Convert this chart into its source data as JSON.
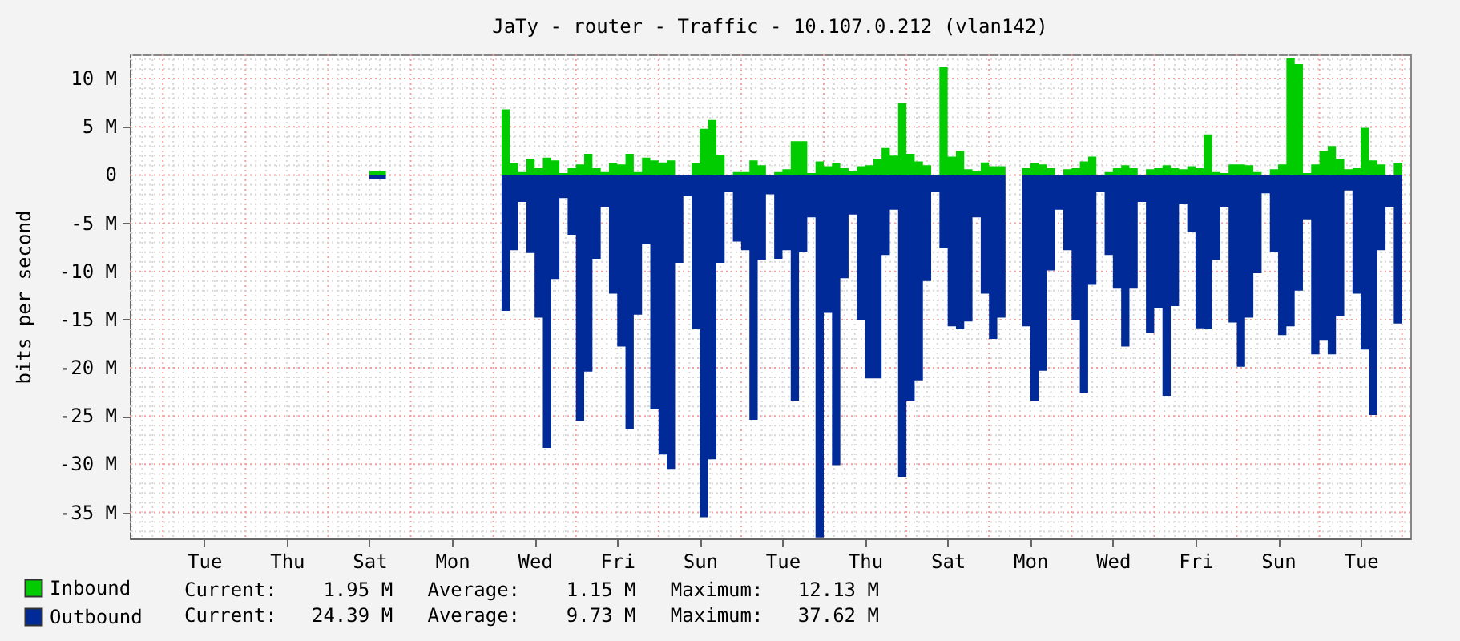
{
  "chart_data": {
    "type": "area",
    "title": "JaTy - router - Traffic - 10.107.0.212 (vlan142)",
    "ylabel": "bits per second",
    "categories": [
      null,
      null,
      null,
      null,
      null,
      null,
      null,
      null,
      null,
      "Tue",
      null,
      null,
      null,
      null,
      null,
      null,
      null,
      null,
      null,
      "Thu",
      null,
      null,
      null,
      null,
      null,
      null,
      null,
      null,
      null,
      "Sat",
      null,
      null,
      null,
      null,
      null,
      null,
      null,
      null,
      null,
      "Mon",
      null,
      null,
      null,
      null,
      null,
      null,
      null,
      null,
      null,
      "Wed",
      null,
      null,
      null,
      null,
      null,
      null,
      null,
      null,
      null,
      "Fri",
      null,
      null,
      null,
      null,
      null,
      null,
      null,
      null,
      null,
      "Sun",
      null,
      null,
      null,
      null,
      null,
      null,
      null,
      null,
      null,
      "Tue",
      null,
      null,
      null,
      null,
      null,
      null,
      null,
      null,
      null,
      "Thu",
      null,
      null,
      null,
      null,
      null,
      null,
      null,
      null,
      null,
      "Sat",
      null,
      null,
      null,
      null,
      null,
      null,
      null,
      null,
      null,
      "Mon",
      null,
      null,
      null,
      null,
      null,
      null,
      null,
      null,
      null,
      "Wed",
      null,
      null,
      null,
      null,
      null,
      null,
      null,
      null,
      null,
      "Fri",
      null,
      null,
      null,
      null,
      null,
      null,
      null,
      null,
      null,
      "Sun",
      null,
      null,
      null,
      null,
      null,
      null,
      null,
      null,
      null,
      "Tue",
      null,
      null,
      null,
      null,
      null
    ],
    "series": [
      {
        "name": "Inbound",
        "color": "#00cc00",
        "values": [
          0,
          0,
          0,
          0,
          0,
          0,
          0,
          0,
          0,
          0,
          0,
          0,
          0,
          0,
          0,
          0,
          0,
          0,
          0,
          0,
          0,
          0,
          0,
          0,
          0,
          0,
          0,
          0,
          0,
          0.4,
          0.4,
          0,
          0,
          0,
          0,
          0,
          0,
          0,
          0,
          0,
          0,
          0,
          0,
          0,
          null,
          6.8,
          1.2,
          0.3,
          1.7,
          0.7,
          1.8,
          1.5,
          0.2,
          0.7,
          1.1,
          2.2,
          0.7,
          0.3,
          1.2,
          1.1,
          2.2,
          0.3,
          1.8,
          1.5,
          1.3,
          1.5,
          0,
          0,
          1.2,
          4.8,
          5.7,
          2.1,
          0,
          0.3,
          0.3,
          1.5,
          1.0,
          0,
          0.3,
          0.6,
          3.5,
          3.5,
          0.2,
          1.4,
          0.9,
          1.2,
          0.7,
          0.4,
          0.9,
          1.0,
          1.7,
          2.8,
          2.0,
          7.5,
          2.2,
          1.4,
          1.0,
          0,
          11.2,
          1.9,
          2.5,
          0.6,
          0.4,
          1.3,
          0.9,
          0.9,
          1.5,
          null,
          0.7,
          1.2,
          1.1,
          0.7,
          0,
          0.6,
          0.7,
          1.4,
          1.9,
          0,
          0.3,
          0.7,
          1.0,
          0.7,
          0,
          0.6,
          0.7,
          1.0,
          0.7,
          0.6,
          0.9,
          0.7,
          4.2,
          0.3,
          0.2,
          1.1,
          1.1,
          1.0,
          0.3,
          0,
          0.6,
          1.1,
          12.1,
          11.5,
          0.2,
          1.1,
          2.5,
          3.0,
          1.7,
          0.6,
          0.7,
          4.9,
          1.5,
          1.1,
          0,
          1.2,
          1.9
        ]
      },
      {
        "name": "Outbound",
        "color": "#002a97",
        "values": [
          0,
          0,
          0,
          0,
          0,
          0,
          0,
          0,
          0,
          0,
          0,
          0,
          0,
          0,
          0,
          0,
          0,
          0,
          0,
          0,
          0,
          0,
          0,
          0,
          0,
          0,
          0,
          0,
          0,
          -0.4,
          -0.4,
          0,
          0,
          0,
          0,
          0,
          0,
          0,
          0,
          0,
          0,
          0,
          0,
          0,
          null,
          -14.1,
          -7.8,
          -2.8,
          -8.1,
          -14.8,
          -28.3,
          -10.8,
          -2.4,
          -6.2,
          -25.5,
          -20.4,
          -8.7,
          -3.3,
          -12.3,
          -17.8,
          -26.4,
          -14.5,
          -7.2,
          -24.3,
          -29.0,
          -30.5,
          -9.1,
          -2.2,
          -16.0,
          -35.5,
          -29.5,
          -9.1,
          -1.8,
          -6.9,
          -7.8,
          -25.4,
          -8.8,
          -2.0,
          -8.7,
          -7.8,
          -23.4,
          -8.0,
          -4.4,
          -37.6,
          -14.3,
          -30.1,
          -10.7,
          -4.1,
          -15.1,
          -21.1,
          -21.1,
          -8.3,
          -3.6,
          -31.3,
          -23.4,
          -21.3,
          -11.0,
          -1.8,
          -7.6,
          -15.7,
          -16.0,
          -15.2,
          -4.4,
          -12.3,
          -17.0,
          -14.8,
          -11.5,
          null,
          -15.7,
          -23.4,
          -20.3,
          -9.9,
          -3.6,
          -7.8,
          -15.1,
          -22.6,
          -11.4,
          -1.8,
          -8.3,
          -11.8,
          -17.8,
          -11.8,
          -2.8,
          -16.4,
          -13.8,
          -22.9,
          -13.6,
          -3.0,
          -5.9,
          -15.9,
          -16.0,
          -8.8,
          -3.3,
          -15.3,
          -19.9,
          -14.8,
          -10.2,
          -1.9,
          -8.0,
          -16.6,
          -15.7,
          -12.0,
          -4.6,
          -18.6,
          -17.1,
          -18.6,
          -14.6,
          -1.6,
          -12.3,
          -18.1,
          -24.9,
          -7.8,
          -3.3,
          -15.4,
          -24.4
        ]
      }
    ],
    "ylim": [
      -37.7,
      12.5
    ],
    "yticks": [
      {
        "value": 10,
        "label": "10 M"
      },
      {
        "value": 5,
        "label": "5 M"
      },
      0,
      {
        "value": -5,
        "label": "-5 M"
      },
      {
        "value": -10,
        "label": "-10 M"
      },
      {
        "value": -15,
        "label": "-15 M"
      },
      {
        "value": -20,
        "label": "-20 M"
      },
      {
        "value": -25,
        "label": "-25 M"
      },
      {
        "value": -30,
        "label": "-30 M"
      },
      {
        "value": -35,
        "label": "-35 M"
      }
    ],
    "grid": true,
    "legend": "bottom",
    "annotations": [
      "Current:    1.95 M   Average:    1.15 M   Maximum:   12.13 M",
      "Current:   24.39 M   Average:    9.73 M   Maximum:   37.62 M"
    ]
  }
}
